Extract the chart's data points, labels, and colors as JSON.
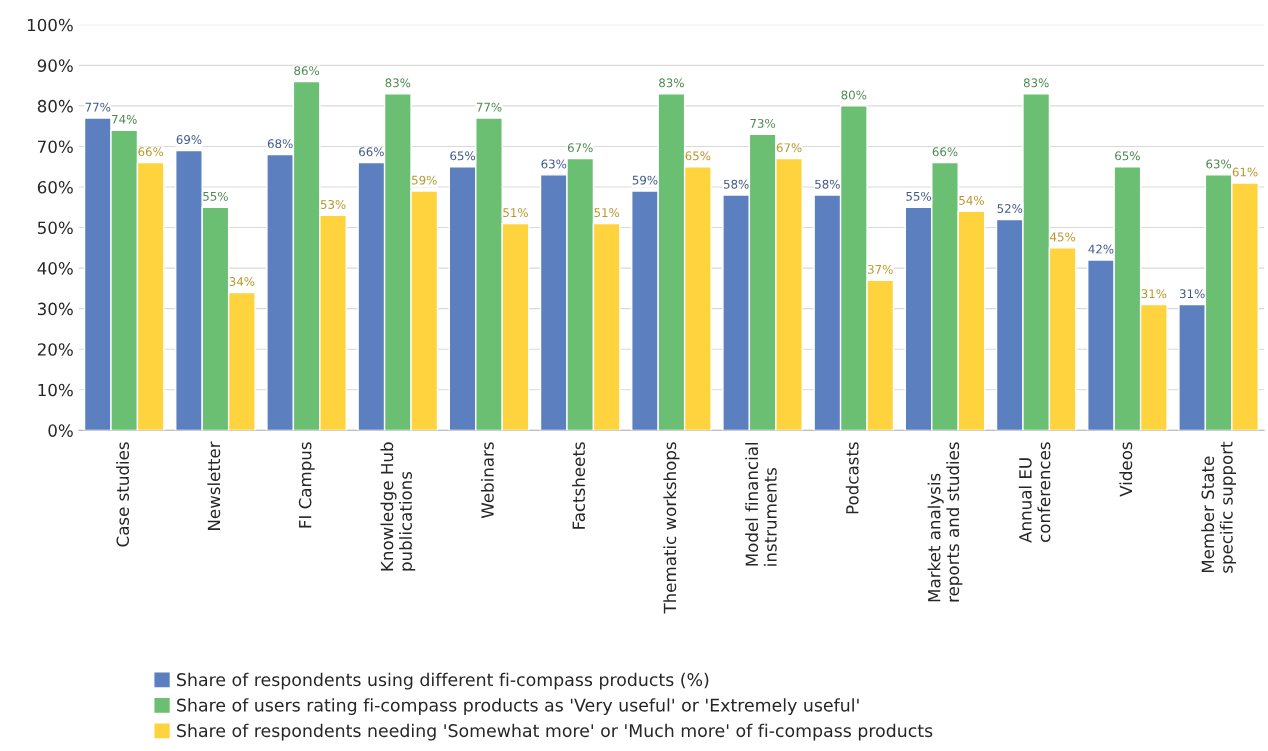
{
  "chart_data": {
    "type": "bar",
    "categories": [
      "Case studies",
      "Newsletter",
      "FI Campus",
      "Knowledge Hub\npublications",
      "Webinars",
      "Factsheets",
      "Thematic workshops",
      "Model financial\ninstruments",
      "Podcasts",
      "Market analysis\nreports and studies",
      "Annual EU\nconferences",
      "Videos",
      "Member State\nspecific support"
    ],
    "series": [
      {
        "name": "Share of respondents using different fi-compass products (%)",
        "color": "#5b7fbf",
        "values": [
          77,
          69,
          68,
          66,
          65,
          63,
          59,
          58,
          58,
          55,
          52,
          42,
          31
        ],
        "value_labels": [
          "77%",
          "69%",
          "68%",
          "66%",
          "65%",
          "63%",
          "59%",
          "58%",
          "58%",
          "55%",
          "52%",
          "42%",
          "31%"
        ]
      },
      {
        "name": "Share of users rating fi-compass products as 'Very useful' or 'Extremely useful'",
        "color": "#6bbf73",
        "values": [
          74,
          55,
          86,
          83,
          77,
          67,
          83,
          73,
          80,
          66,
          83,
          65,
          63
        ],
        "value_labels": [
          "74%",
          "55%",
          "86%",
          "83%",
          "77%",
          "67%",
          "83%",
          "73%",
          "80%",
          "66%",
          "83%",
          "65%",
          "63%"
        ]
      },
      {
        "name": "Share of respondents needing 'Somewhat more' or 'Much more' of fi-compass products",
        "color": "#ffd33d",
        "values": [
          66,
          34,
          53,
          59,
          51,
          51,
          65,
          67,
          37,
          54,
          45,
          31,
          61
        ],
        "value_labels": [
          "66%",
          "34%",
          "53%",
          "59%",
          "51%",
          "51%",
          "65%",
          "67%",
          "37%",
          "54%",
          "45%",
          "31%",
          "61%"
        ]
      }
    ],
    "ylim": [
      0,
      100
    ],
    "yticks": [
      {
        "value": 0,
        "label": "0%"
      },
      {
        "value": 10,
        "label": "10%"
      },
      {
        "value": 20,
        "label": "20%"
      },
      {
        "value": 30,
        "label": "30%"
      },
      {
        "value": 40,
        "label": "40%"
      },
      {
        "value": 50,
        "label": "50%"
      },
      {
        "value": 60,
        "label": "60%"
      },
      {
        "value": 70,
        "label": "70%"
      },
      {
        "value": 80,
        "label": "80%"
      },
      {
        "value": 90,
        "label": "90%"
      },
      {
        "value": 100,
        "label": "100%"
      }
    ],
    "grid": "y",
    "legend": "bottom"
  }
}
